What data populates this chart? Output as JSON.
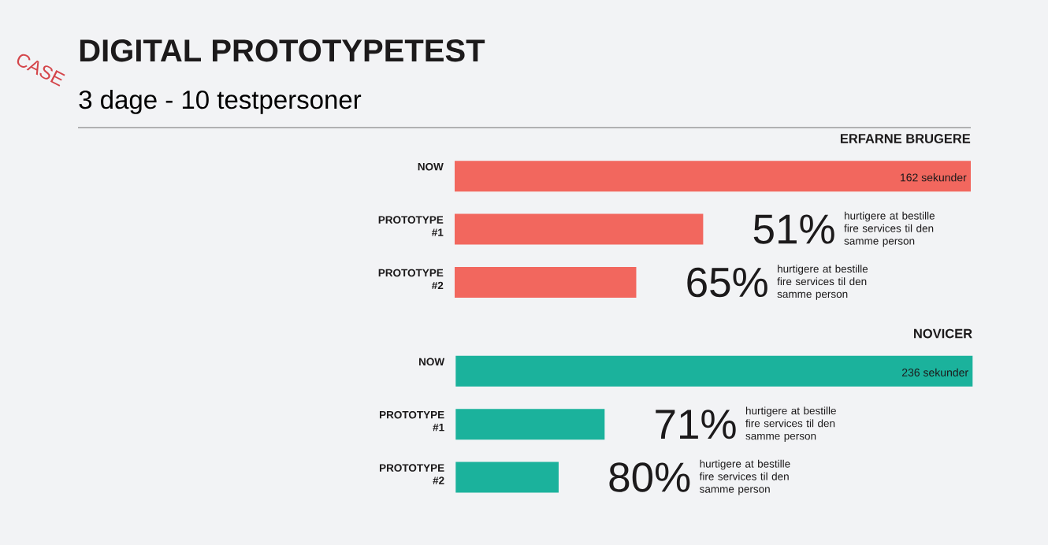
{
  "chart_data": [
    {
      "type": "other",
      "title": "DIGITAL PROTOTYPETEST",
      "subtitle": "3 dage - 10 testpersoner",
      "annotations": [
        "CASE"
      ]
    },
    {
      "type": "bar",
      "orientation": "horizontal",
      "title": "ERFARNE BRUGERE",
      "categories": [
        "NOW",
        "PROTOTYPE #1",
        "PROTOTYPE #2"
      ],
      "values": [
        162,
        78,
        57
      ],
      "color": "#f2675e",
      "xlim": [
        0,
        162
      ],
      "tick_labels": "y",
      "value_labels": [
        "162 sekunder",
        null,
        null
      ],
      "annotations": [
        {
          "text": "51%",
          "x": 78,
          "y": "PROTOTYPE #1"
        },
        "hurtigere at bestille fire services til den samme person",
        {
          "text": "65%",
          "x": 57,
          "y": "PROTOTYPE #2"
        },
        "hurtigere at bestille fire services til den samme person"
      ]
    },
    {
      "type": "bar",
      "orientation": "horizontal",
      "title": "NOVICER",
      "categories": [
        "NOW",
        "PROTOTYPE #1",
        "PROTOTYPE #2"
      ],
      "values": [
        236,
        68,
        47
      ],
      "color": "#1bb29c",
      "xlim": [
        0,
        236
      ],
      "tick_labels": "y",
      "value_labels": [
        "236 sekunder",
        null,
        null
      ],
      "annotations": [
        {
          "text": "71%",
          "x": 68,
          "y": "PROTOTYPE #1"
        },
        "hurtigere at bestille fire services til den samme person",
        {
          "text": "80%",
          "x": 47,
          "y": "PROTOTYPE #2"
        },
        "hurtigere at bestille fire services til den samme person"
      ]
    }
  ]
}
